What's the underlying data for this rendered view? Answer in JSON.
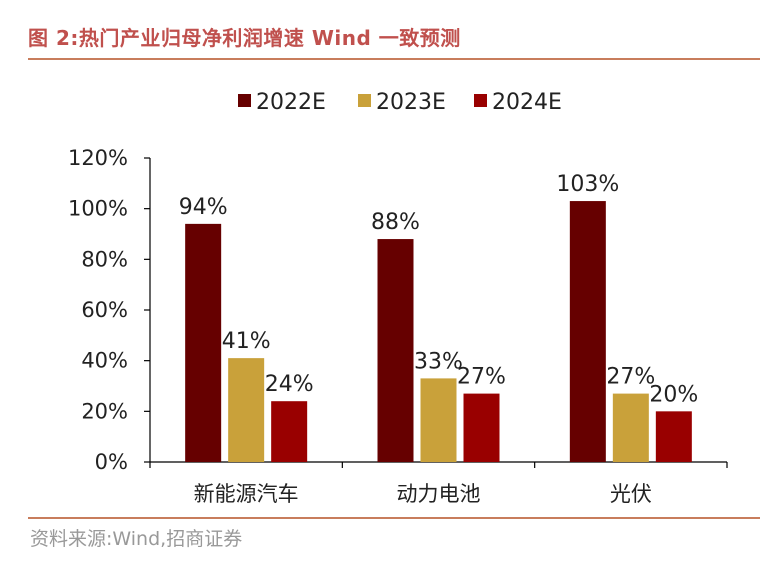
{
  "header": {
    "title": "图 2:热门产业归母净利润增速 Wind 一致预测"
  },
  "footer": {
    "source": "资料来源:Wind,招商证券"
  },
  "chart_data": {
    "type": "bar",
    "categories": [
      "新能源汽车",
      "动力电池",
      "光伏"
    ],
    "series": [
      {
        "name": "2022E",
        "values": [
          94,
          88,
          103
        ],
        "labels": [
          "94%",
          "88%",
          "103%"
        ],
        "color": "#660000"
      },
      {
        "name": "2023E",
        "values": [
          41,
          33,
          27
        ],
        "labels": [
          "41%",
          "33%",
          "27%"
        ],
        "color": "#C9A13A"
      },
      {
        "name": "2024E",
        "values": [
          24,
          27,
          20
        ],
        "labels": [
          "24%",
          "27%",
          "20%"
        ],
        "color": "#990000"
      }
    ],
    "yticks": [
      "0%",
      "20%",
      "40%",
      "60%",
      "80%",
      "100%",
      "120%"
    ],
    "ylim": [
      0,
      120
    ],
    "legend": "top",
    "grid": false
  }
}
